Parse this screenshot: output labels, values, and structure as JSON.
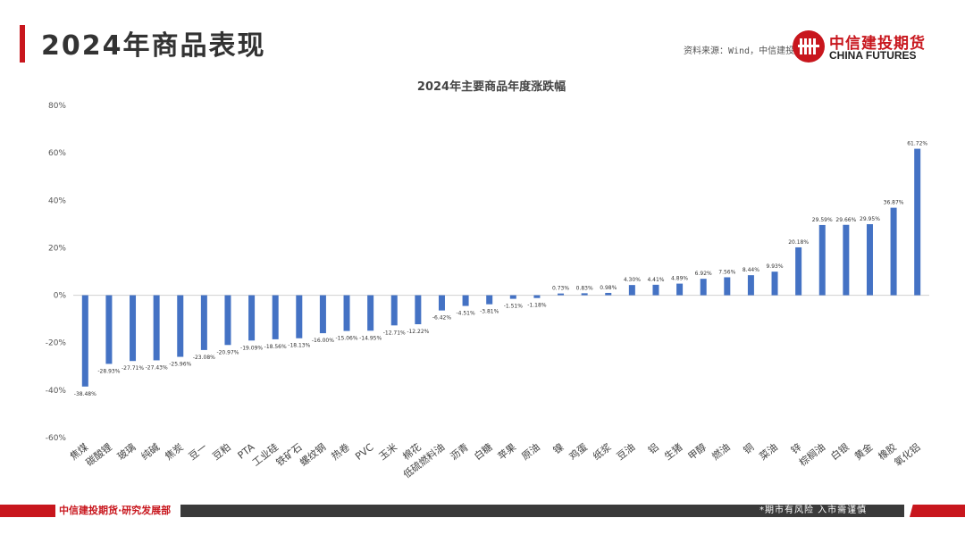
{
  "header": {
    "title": "2024年商品表现",
    "source": "资料来源：Wind，中信建投期货"
  },
  "logo": {
    "name_cn": "中信建投期货",
    "name_en": "CHINA FUTURES"
  },
  "footer": {
    "left_text": "中信建投期货·研究发展部",
    "right_text": "*期市有风险  入市需谨慎"
  },
  "colors": {
    "accent_red": "#c8161d",
    "bar_blue": "#4472c4",
    "footer_dark": "#3a3a3a"
  },
  "chart_data": {
    "type": "bar",
    "title": "2024年主要商品年度涨跌幅",
    "xlabel": "",
    "ylabel": "",
    "ylim": [
      -60,
      80
    ],
    "yticks": [
      -60,
      -40,
      -20,
      0,
      20,
      40,
      60,
      80
    ],
    "ytick_labels": [
      "-60%",
      "-40%",
      "-20%",
      "0%",
      "20%",
      "40%",
      "60%",
      "80%"
    ],
    "grid": false,
    "legend": "none",
    "categories": [
      "焦煤",
      "碳酸锂",
      "玻璃",
      "纯碱",
      "焦炭",
      "豆一",
      "豆粕",
      "PTA",
      "工业硅",
      "铁矿石",
      "螺纹钢",
      "热卷",
      "PVC",
      "玉米",
      "棉花",
      "低硫燃料油",
      "沥青",
      "白糖",
      "苹果",
      "原油",
      "镍",
      "鸡蛋",
      "纸浆",
      "豆油",
      "铝",
      "生猪",
      "甲醇",
      "燃油",
      "铜",
      "菜油",
      "锌",
      "棕榈油",
      "白银",
      "黄金",
      "橡胶",
      "氧化铝"
    ],
    "values": [
      -38.48,
      -28.93,
      -27.71,
      -27.43,
      -25.96,
      -23.08,
      -20.97,
      -19.09,
      -18.56,
      -18.13,
      -16.0,
      -15.06,
      -14.95,
      -12.71,
      -12.22,
      -6.42,
      -4.51,
      -3.81,
      -1.51,
      -1.18,
      0.73,
      0.83,
      0.98,
      4.3,
      4.41,
      4.89,
      6.92,
      7.56,
      8.44,
      9.93,
      20.18,
      29.59,
      29.66,
      29.95,
      36.87,
      61.72
    ],
    "value_labels": [
      "-38.48%",
      "-28.93%",
      "-27.71%",
      "-27.43%",
      "-25.96%",
      "-23.08%",
      "-20.97%",
      "-19.09%",
      "-18.56%",
      "-18.13%",
      "-16.00%",
      "-15.06%",
      "-14.95%",
      "-12.71%",
      "-12.22%",
      "-6.42%",
      "-4.51%",
      "-3.81%",
      "-1.51%",
      "-1.18%",
      "0.73%",
      "0.83%",
      "0.98%",
      "4.30%",
      "4.41%",
      "4.89%",
      "6.92%",
      "7.56%",
      "8.44%",
      "9.93%",
      "20.18%",
      "29.59%",
      "29.66%",
      "29.95%",
      "36.87%",
      "61.72%"
    ]
  }
}
